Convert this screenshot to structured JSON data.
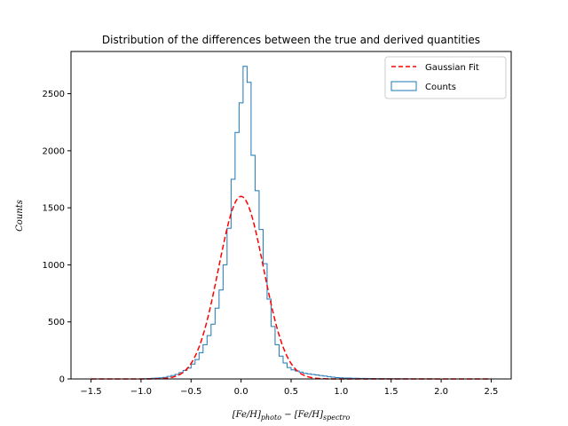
{
  "chart_data": {
    "type": "histogram",
    "title": "Distribution of the differences between the true and derived quantities",
    "xlabel": {
      "base": "[Fe/H]",
      "sub1": "photo",
      "minus": " − ",
      "sub2": "spectro"
    },
    "ylabel": "Counts",
    "xlim": [
      -1.7,
      2.7
    ],
    "ylim": [
      0,
      2870
    ],
    "xticks": [
      -1.5,
      -1.0,
      -0.5,
      0.0,
      0.5,
      1.0,
      1.5,
      2.0,
      2.5
    ],
    "xtick_labels": [
      "−1.5",
      "−1.0",
      "−0.5",
      "0.0",
      "0.5",
      "1.0",
      "1.5",
      "2.0",
      "2.5"
    ],
    "yticks": [
      0,
      500,
      1000,
      1500,
      2000,
      2500
    ],
    "ytick_labels": [
      "0",
      "500",
      "1000",
      "1500",
      "2000",
      "2500"
    ],
    "histogram": {
      "name": "Counts",
      "color": "#1f77b4",
      "bins_start": -1.5,
      "bin_width": 0.04,
      "counts": [
        0,
        0,
        0,
        0,
        0,
        0,
        0,
        0,
        0,
        0,
        0,
        0,
        0,
        2,
        4,
        6,
        8,
        10,
        14,
        22,
        30,
        40,
        55,
        75,
        95,
        130,
        170,
        230,
        300,
        380,
        480,
        620,
        780,
        1000,
        1320,
        1750,
        2160,
        2420,
        2740,
        2600,
        1960,
        1650,
        1310,
        1010,
        700,
        460,
        300,
        200,
        140,
        100,
        80,
        70,
        60,
        50,
        45,
        40,
        35,
        30,
        25,
        20,
        16,
        12,
        10,
        8,
        8,
        6,
        6,
        5,
        5,
        4,
        4,
        3,
        3,
        3,
        2,
        2,
        2,
        2,
        2,
        1,
        1,
        1,
        1,
        1,
        1,
        1,
        0,
        0,
        0,
        0,
        0,
        0,
        0,
        0,
        0,
        0,
        0,
        0,
        0,
        0
      ]
    },
    "fit": {
      "name": "Gaussian Fit",
      "color": "#ff0000",
      "amplitude": 1600,
      "mean": 0.0,
      "sigma": 0.225,
      "x_range": [
        -1.5,
        2.5
      ]
    },
    "legend": {
      "position": "top-right",
      "entries": [
        "Gaussian Fit",
        "Counts"
      ]
    }
  }
}
